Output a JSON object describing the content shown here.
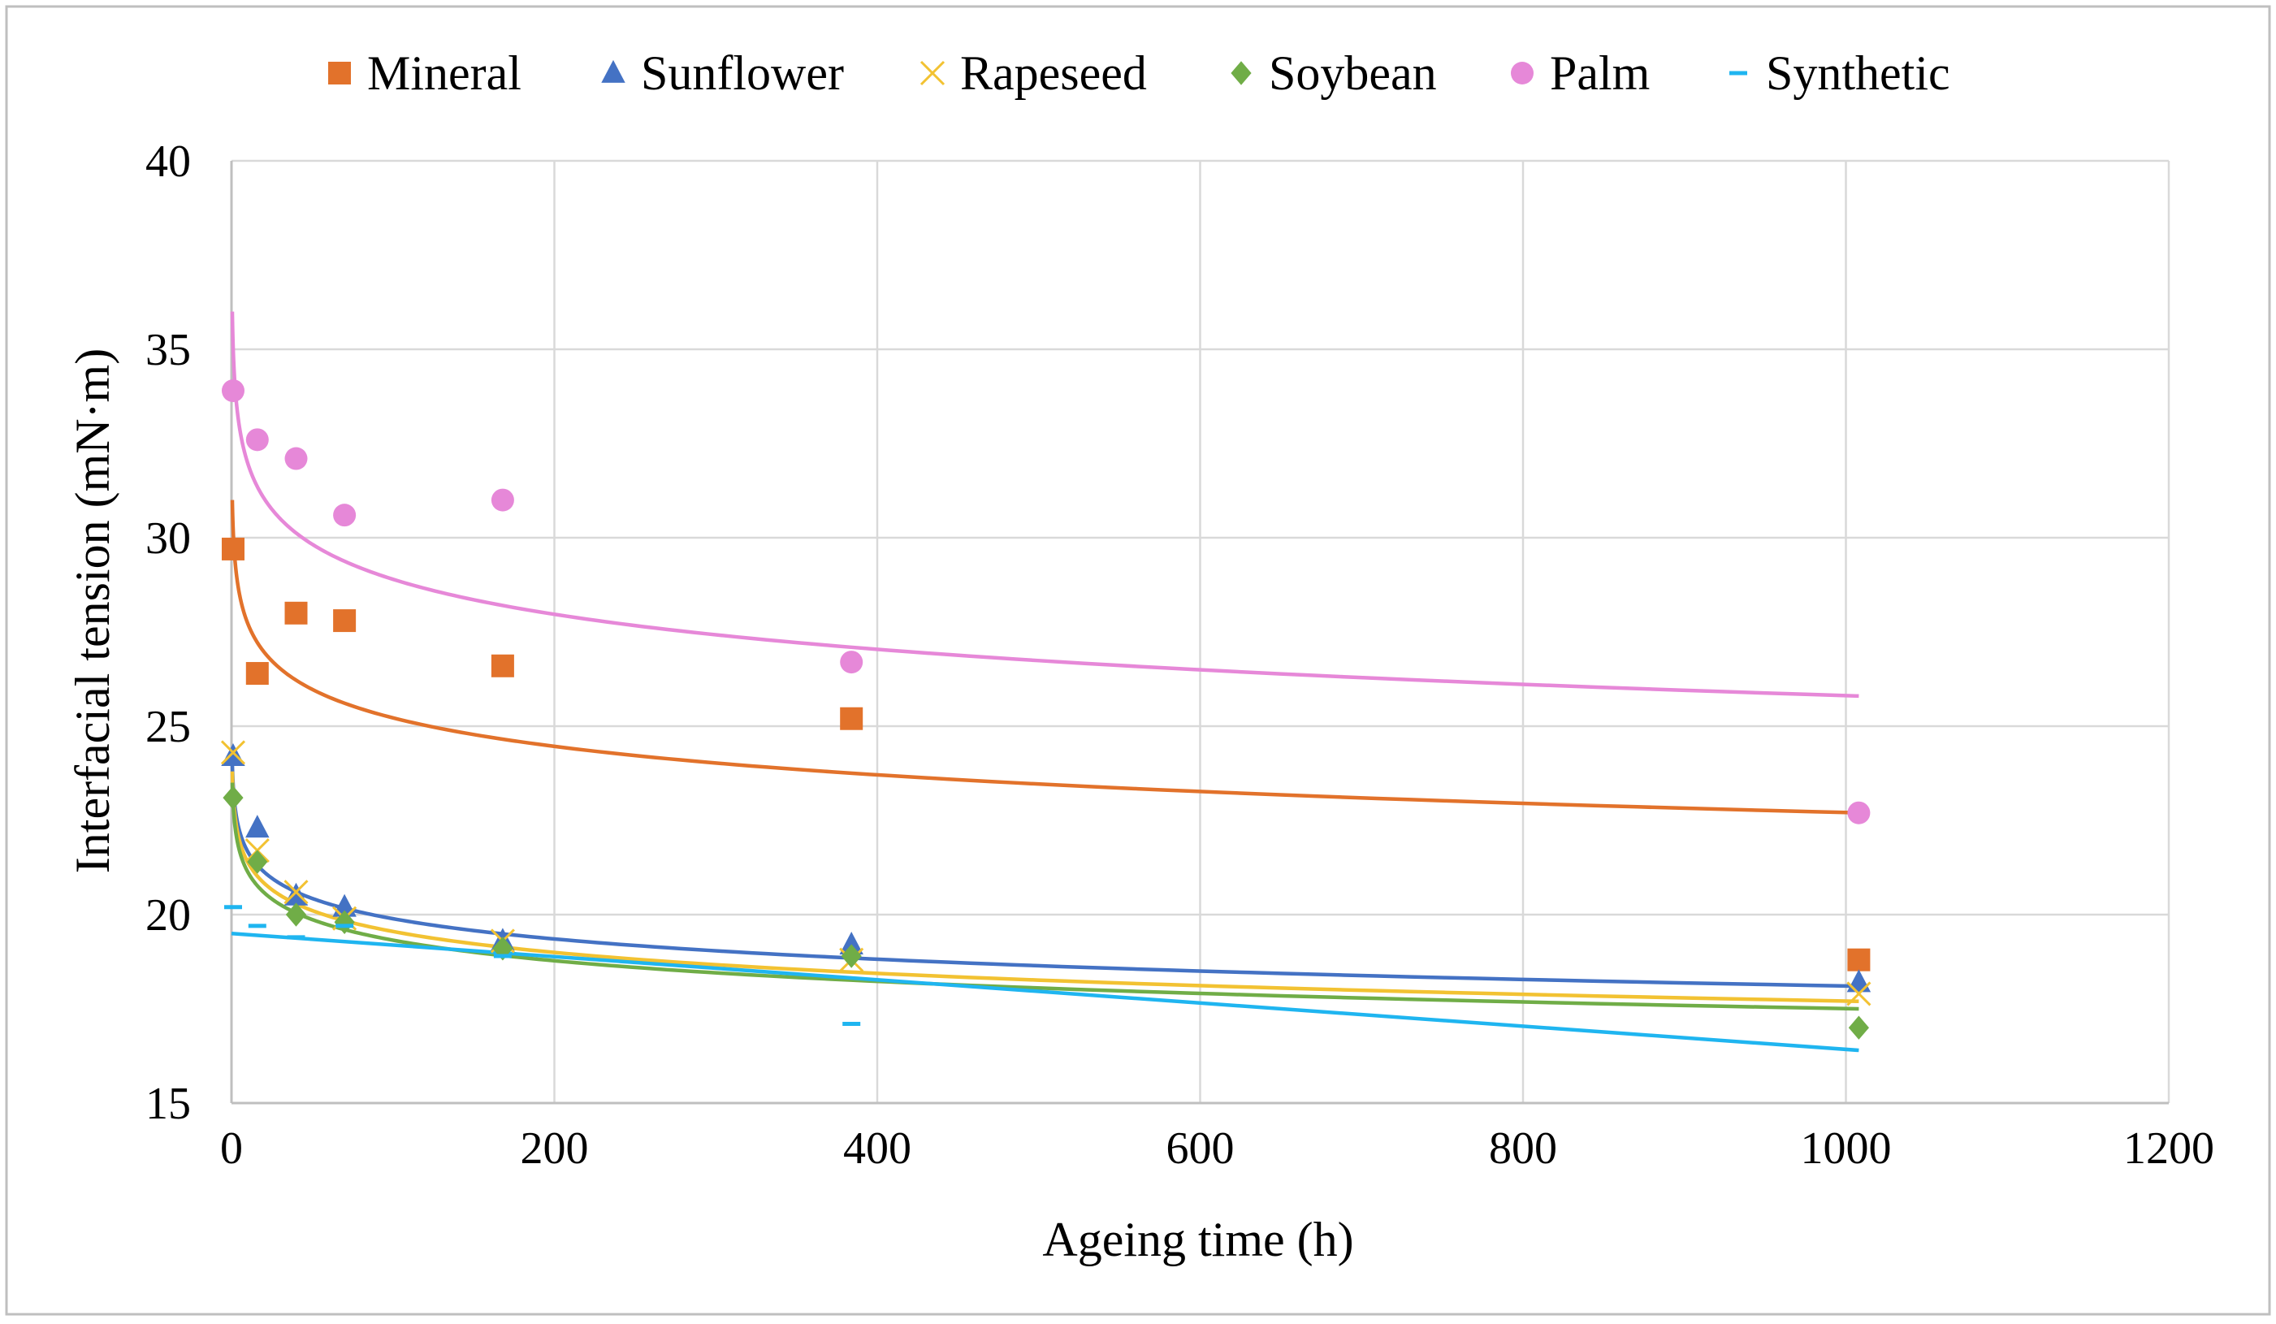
{
  "chart_data": {
    "type": "scatter",
    "title": "",
    "xlabel": "Ageing time (h)",
    "ylabel": "Interfacial tension (mN·m)",
    "xlim": [
      0,
      1200
    ],
    "ylim": [
      15,
      40
    ],
    "xticks": [
      0,
      200,
      400,
      600,
      800,
      1000,
      1200
    ],
    "yticks": [
      15,
      20,
      25,
      30,
      35,
      40
    ],
    "x_tick_labels": [
      "0",
      "200",
      "400",
      "600",
      "800",
      "1000",
      "1200"
    ],
    "y_tick_labels": [
      "15",
      "20",
      "25",
      "30",
      "35",
      "40"
    ],
    "grid": true,
    "legend_position": "top",
    "series": [
      {
        "name": "Mineral",
        "marker": "square",
        "color": "#E2722B",
        "x": [
          1,
          16,
          40,
          70,
          168,
          384,
          1008
        ],
        "y": [
          29.7,
          26.4,
          28.0,
          27.8,
          26.6,
          25.2,
          18.8
        ],
        "trend": {
          "type": "log",
          "x_start": 0.5,
          "y_start": 31.0,
          "x_end": 1008,
          "y_end": 22.7
        }
      },
      {
        "name": "Sunflower",
        "marker": "triangle",
        "color": "#4472C4",
        "x": [
          1,
          16,
          40,
          70,
          168,
          384,
          1008
        ],
        "y": [
          24.2,
          22.3,
          20.5,
          20.2,
          19.3,
          19.2,
          18.2
        ],
        "trend": {
          "type": "log",
          "x_start": 0.5,
          "y_start": 24.0,
          "x_end": 1008,
          "y_end": 18.1
        }
      },
      {
        "name": "Rapeseed",
        "marker": "x",
        "color": "#F2C232",
        "x": [
          1,
          16,
          40,
          70,
          168,
          384,
          1008
        ],
        "y": [
          24.3,
          21.7,
          20.6,
          19.9,
          19.3,
          18.8,
          17.9
        ],
        "trend": {
          "type": "log",
          "x_start": 0.5,
          "y_start": 23.8,
          "x_end": 1008,
          "y_end": 17.7
        }
      },
      {
        "name": "Soybean",
        "marker": "diamond",
        "color": "#70AD47",
        "x": [
          1,
          16,
          40,
          70,
          168,
          384,
          1008
        ],
        "y": [
          23.1,
          21.4,
          20.0,
          19.8,
          19.1,
          18.9,
          17.0
        ],
        "trend": {
          "type": "log",
          "x_start": 0.5,
          "y_start": 23.5,
          "x_end": 1008,
          "y_end": 17.5
        }
      },
      {
        "name": "Palm",
        "marker": "circle",
        "color": "#E688D8",
        "x": [
          1,
          16,
          40,
          70,
          168,
          384,
          1008
        ],
        "y": [
          33.9,
          32.6,
          32.1,
          30.6,
          31.0,
          26.7,
          22.7
        ],
        "trend": {
          "type": "log",
          "x_start": 0.5,
          "y_start": 36.0,
          "x_end": 1008,
          "y_end": 25.8
        }
      },
      {
        "name": "Synthetic",
        "marker": "dash",
        "color": "#1FB5F0",
        "x": [
          1,
          16,
          40,
          70,
          168,
          384
        ],
        "y": [
          20.2,
          19.7,
          19.4,
          19.7,
          18.9,
          17.1
        ],
        "trend": {
          "type": "linear",
          "x_start": 0,
          "y_start": 19.5,
          "x_end": 1008,
          "y_end": 16.4
        }
      }
    ]
  }
}
